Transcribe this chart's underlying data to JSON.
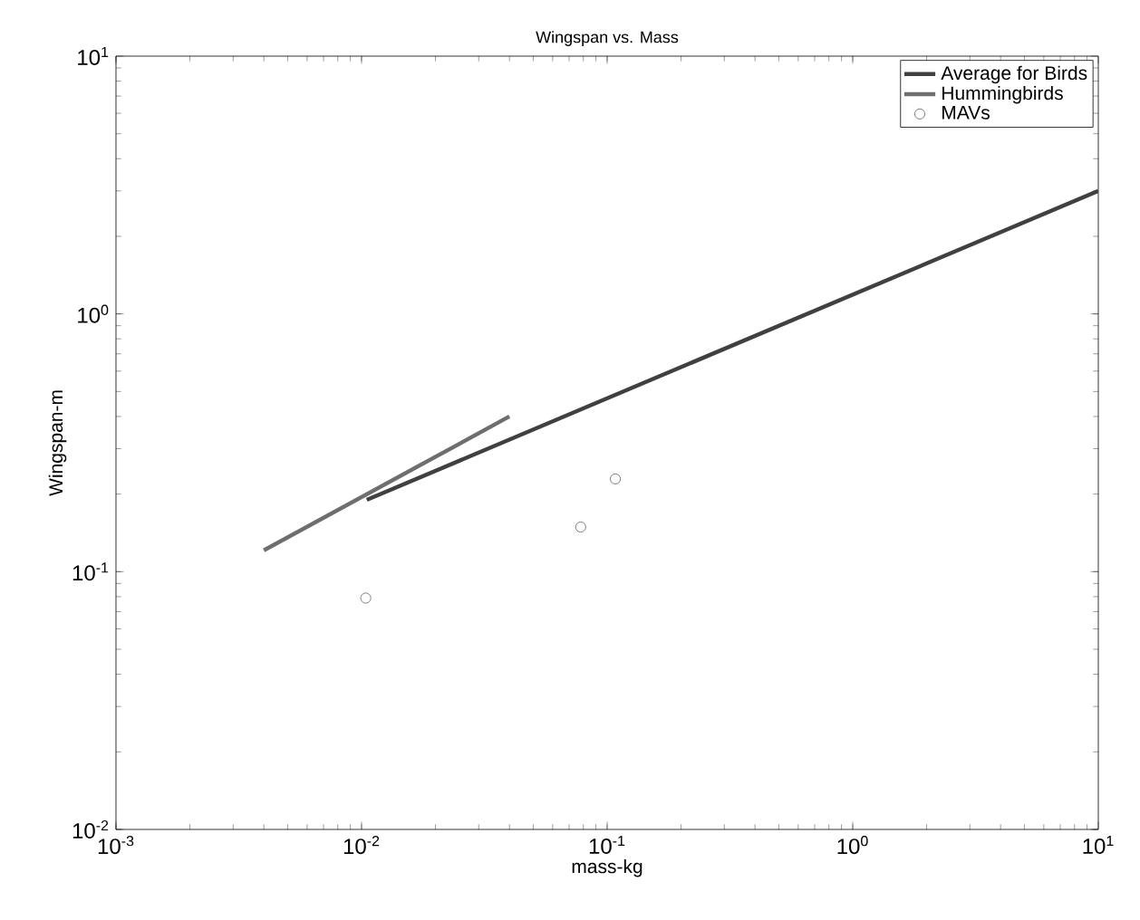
{
  "chart_data": {
    "type": "line",
    "title": "Wingspan vs. Mass",
    "xlabel": "mass-kg",
    "ylabel": "Wingspan-m",
    "log": "xy",
    "xlim": [
      0.001,
      10
    ],
    "ylim": [
      0.01,
      10
    ],
    "xticks": [
      {
        "value": 0.001,
        "label": "10$^{-3}$"
      },
      {
        "value": 0.01,
        "label": "10$^{-2}$"
      },
      {
        "value": 0.1,
        "label": "10$^{-1}$"
      },
      {
        "value": 1,
        "label": "10$^{0}$"
      },
      {
        "value": 10,
        "label": "10$^{1}$"
      }
    ],
    "yticks": [
      {
        "value": 0.01,
        "label": "10$^{-2}$"
      },
      {
        "value": 0.1,
        "label": "10$^{-1}$"
      },
      {
        "value": 1,
        "label": "10$^{0}$"
      },
      {
        "value": 10,
        "label": "10$^{1}$"
      }
    ],
    "legend": "top right",
    "grid": false,
    "series": [
      {
        "name": "Average for Birds",
        "color": "#404040",
        "marker": "none",
        "x": [
          0.0105,
          10
        ],
        "values": [
          0.19,
          3.0
        ]
      },
      {
        "name": "Hummingbirds",
        "color": "#6e6e6e",
        "marker": "none",
        "x": [
          0.004,
          0.04
        ],
        "values": [
          0.121,
          0.4
        ]
      },
      {
        "name": "MAVs",
        "type": "scatter",
        "color": "#808080",
        "marker": "circle",
        "x": [
          0.0104,
          0.078,
          0.108
        ],
        "values": [
          0.079,
          0.149,
          0.229
        ]
      }
    ]
  }
}
